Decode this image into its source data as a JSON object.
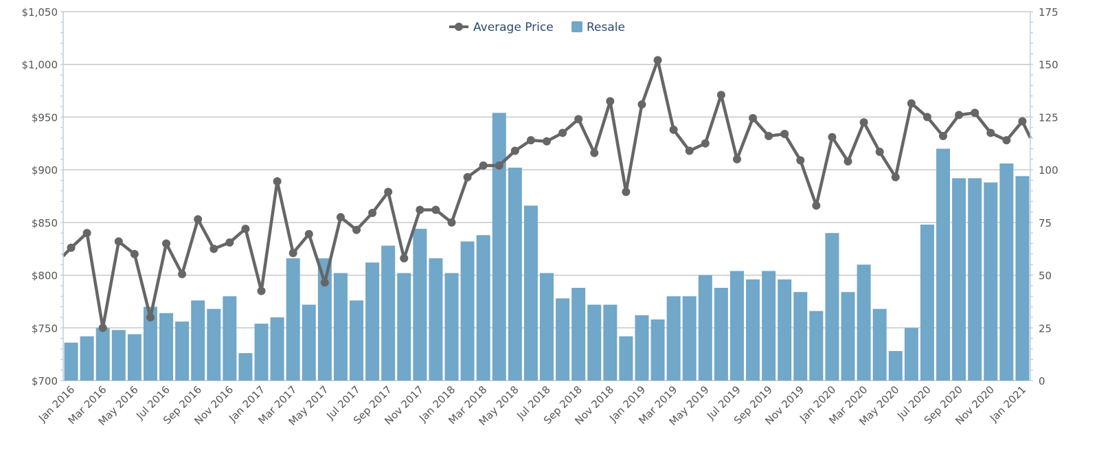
{
  "chart_data": {
    "type": "bar+line",
    "title": "",
    "legend": {
      "position": "top-center",
      "entries": [
        "Average Price",
        "Resale"
      ]
    },
    "categories": [
      "Jan 2016",
      "Feb 2016",
      "Mar 2016",
      "Apr 2016",
      "May 2016",
      "Jun 2016",
      "Jul 2016",
      "Aug 2016",
      "Sep 2016",
      "Oct 2016",
      "Nov 2016",
      "Dec 2016",
      "Jan 2017",
      "Feb 2017",
      "Mar 2017",
      "Apr 2017",
      "May 2017",
      "Jun 2017",
      "Jul 2017",
      "Aug 2017",
      "Sep 2017",
      "Oct 2017",
      "Nov 2017",
      "Dec 2017",
      "Jan 2018",
      "Feb 2018",
      "Mar 2018",
      "Apr 2018",
      "May 2018",
      "Jun 2018",
      "Jul 2018",
      "Aug 2018",
      "Sep 2018",
      "Oct 2018",
      "Nov 2018",
      "Dec 2018",
      "Jan 2019",
      "Feb 2019",
      "Mar 2019",
      "Apr 2019",
      "May 2019",
      "Jun 2019",
      "Jul 2019",
      "Aug 2019",
      "Sep 2019",
      "Oct 2019",
      "Nov 2019",
      "Dec 2019",
      "Jan 2020",
      "Feb 2020",
      "Mar 2020",
      "Apr 2020",
      "May 2020",
      "Jun 2020",
      "Jul 2020",
      "Aug 2020",
      "Sep 2020",
      "Oct 2020",
      "Nov 2020",
      "Dec 2020",
      "Jan 2021"
    ],
    "x_tick_labels": [
      "Jan 2016",
      "Mar 2016",
      "May 2016",
      "Jul 2016",
      "Sep 2016",
      "Nov 2016",
      "Jan 2017",
      "Mar 2017",
      "May 2017",
      "Jul 2017",
      "Sep 2017",
      "Nov 2017",
      "Jan 2018",
      "Mar 2018",
      "May 2018",
      "Jul 2018",
      "Sep 2018",
      "Nov 2018",
      "Jan 2019",
      "Mar 2019",
      "May 2019",
      "Jul 2019",
      "Sep 2019",
      "Nov 2019",
      "Jan 2020",
      "Mar 2020",
      "May 2020",
      "Jul 2020",
      "Sep 2020",
      "Nov 2020",
      "Jan 2021"
    ],
    "y_left": {
      "label": "",
      "range": [
        700,
        1050
      ],
      "ticks": [
        "$700",
        "$750",
        "$800",
        "$850",
        "$900",
        "$950",
        "$1,000",
        "$1,050"
      ]
    },
    "y_right": {
      "label": "",
      "range": [
        0,
        175
      ],
      "ticks": [
        "0",
        "25",
        "50",
        "75",
        "100",
        "125",
        "150",
        "175"
      ]
    },
    "grid": true,
    "series": [
      {
        "name": "Resale",
        "type": "bar",
        "axis": "right",
        "color": "#71a7c8",
        "values": [
          18,
          21,
          25,
          24,
          22,
          35,
          32,
          28,
          38,
          34,
          40,
          13,
          27,
          30,
          58,
          36,
          58,
          51,
          38,
          56,
          64,
          51,
          72,
          58,
          51,
          66,
          69,
          127,
          101,
          83,
          51,
          39,
          44,
          36,
          36,
          21,
          31,
          29,
          40,
          40,
          50,
          44,
          52,
          48,
          52,
          48,
          42,
          33,
          70,
          42,
          55,
          34,
          14,
          25,
          74,
          110,
          96,
          96,
          94,
          103,
          97
        ]
      },
      {
        "name": "Average Price",
        "type": "line",
        "axis": "left",
        "color": "#666666",
        "values": [
          826,
          840,
          750,
          832,
          820,
          760,
          830,
          801,
          853,
          825,
          831,
          844,
          785,
          889,
          821,
          839,
          793,
          855,
          843,
          859,
          879,
          816,
          862,
          862,
          850,
          893,
          904,
          904,
          918,
          928,
          927,
          935,
          948,
          916,
          965,
          879,
          962,
          1004,
          938,
          918,
          925,
          971,
          910,
          949,
          932,
          934,
          909,
          866,
          931,
          908,
          945,
          917,
          893,
          963,
          950,
          932,
          952,
          954,
          935,
          928,
          946
        ]
      }
    ]
  }
}
